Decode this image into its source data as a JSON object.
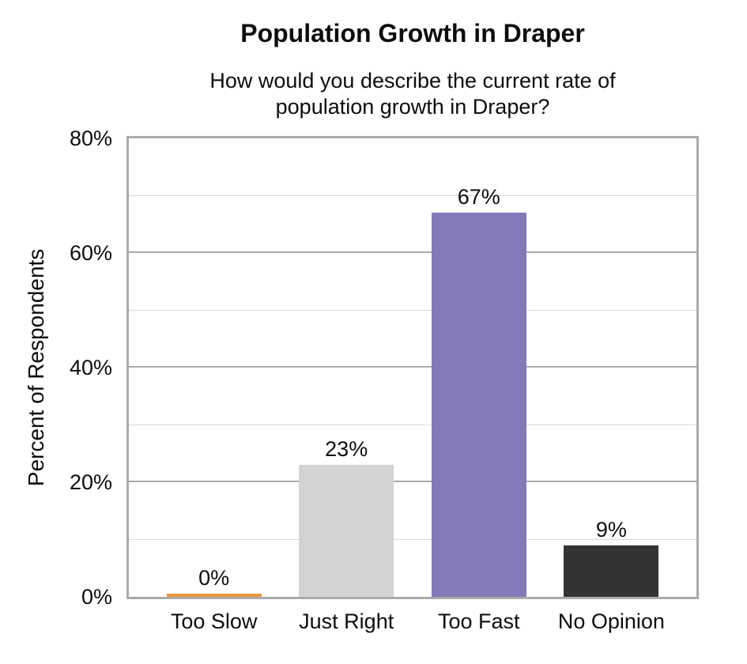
{
  "header": {
    "title": "Population Growth in Draper",
    "subtitle_lines": [
      "How would you describe the current rate of",
      "population growth in Draper?"
    ]
  },
  "chart_data": {
    "type": "bar",
    "title": "Population Growth in Draper",
    "subtitle": "How would you describe the current rate of population growth in Draper?",
    "categories": [
      "Too Slow",
      "Just Right",
      "Too Fast",
      "No Opinion"
    ],
    "values": [
      0,
      23,
      67,
      9
    ],
    "data_labels": [
      "0%",
      "23%",
      "67%",
      "9%"
    ],
    "bar_colors": [
      "#E9993E",
      "#D3D3D3",
      "#8578B8",
      "#333333"
    ],
    "xlabel": "",
    "ylabel": "Percent of Respondents",
    "ylim": [
      0,
      80
    ],
    "ytick_labels": [
      "0%",
      "20%",
      "40%",
      "60%",
      "80%"
    ],
    "ytick_values": [
      0,
      20,
      40,
      60,
      80
    ],
    "gridlines": {
      "on": true,
      "minor_interval": 10,
      "major_interval": 20,
      "minor_color": "#D9D9D9",
      "major_color": "#ABABAB",
      "border_color": "#ABABAB"
    },
    "legend": "none",
    "colors": {
      "text": "#0D0D0D",
      "background": "#FFFFFF"
    }
  }
}
